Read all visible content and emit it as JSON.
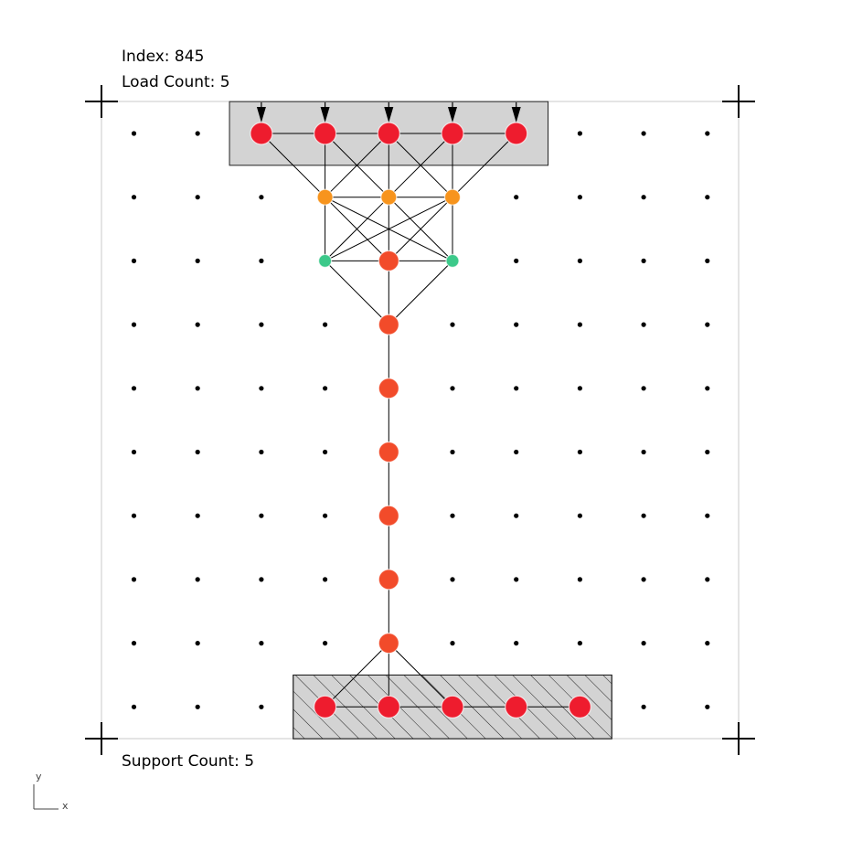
{
  "header": {
    "index_label": "Index: 845",
    "load_label": "Load Count: 5"
  },
  "footer": {
    "support_label": "Support Count: 5"
  },
  "axis": {
    "x_label": "x",
    "y_label": "y"
  },
  "colors": {
    "frame": "#c8c8c8",
    "grid_dot": "#000000",
    "member": "#000000",
    "load_zone": "#d3d3d3",
    "support_zone": "#d3d3d3",
    "node_red": "#ee1c2e",
    "node_orange_red": "#f24b2a",
    "node_orange": "#f7941d",
    "node_green": "#3cc98a"
  },
  "grid": {
    "cols": 10,
    "rows": 10
  },
  "load_zone": {
    "col_start": 1.5,
    "col_end": 6.5,
    "row_start": 0,
    "row_end": 0
  },
  "support_zone": {
    "col_start": 2.5,
    "col_end": 7.5,
    "row_start": 9,
    "row_end": 9
  },
  "loads": [
    [
      2,
      0
    ],
    [
      3,
      0
    ],
    [
      4,
      0
    ],
    [
      5,
      0
    ],
    [
      6,
      0
    ]
  ],
  "nodes": [
    {
      "c": 2,
      "r": 0,
      "type": "node_red",
      "size": "large"
    },
    {
      "c": 3,
      "r": 0,
      "type": "node_red",
      "size": "large"
    },
    {
      "c": 4,
      "r": 0,
      "type": "node_red",
      "size": "large"
    },
    {
      "c": 5,
      "r": 0,
      "type": "node_red",
      "size": "large"
    },
    {
      "c": 6,
      "r": 0,
      "type": "node_red",
      "size": "large"
    },
    {
      "c": 3,
      "r": 1,
      "type": "node_orange",
      "size": "medium"
    },
    {
      "c": 4,
      "r": 1,
      "type": "node_orange",
      "size": "medium"
    },
    {
      "c": 5,
      "r": 1,
      "type": "node_orange",
      "size": "medium"
    },
    {
      "c": 3,
      "r": 2,
      "type": "node_green",
      "size": "small"
    },
    {
      "c": 4,
      "r": 2,
      "type": "node_orange_red",
      "size": "mediumlarge"
    },
    {
      "c": 5,
      "r": 2,
      "type": "node_green",
      "size": "small"
    },
    {
      "c": 4,
      "r": 3,
      "type": "node_orange_red",
      "size": "mediumlarge"
    },
    {
      "c": 4,
      "r": 4,
      "type": "node_orange_red",
      "size": "mediumlarge"
    },
    {
      "c": 4,
      "r": 5,
      "type": "node_orange_red",
      "size": "mediumlarge"
    },
    {
      "c": 4,
      "r": 6,
      "type": "node_orange_red",
      "size": "mediumlarge"
    },
    {
      "c": 4,
      "r": 7,
      "type": "node_orange_red",
      "size": "mediumlarge"
    },
    {
      "c": 4,
      "r": 8,
      "type": "node_orange_red",
      "size": "mediumlarge"
    },
    {
      "c": 3,
      "r": 9,
      "type": "node_red",
      "size": "large"
    },
    {
      "c": 4,
      "r": 9,
      "type": "node_red",
      "size": "large"
    },
    {
      "c": 5,
      "r": 9,
      "type": "node_red",
      "size": "large"
    },
    {
      "c": 6,
      "r": 9,
      "type": "node_red",
      "size": "large"
    },
    {
      "c": 7,
      "r": 9,
      "type": "node_red",
      "size": "large"
    }
  ],
  "members": [
    [
      [
        2,
        0
      ],
      [
        3,
        0
      ]
    ],
    [
      [
        3,
        0
      ],
      [
        4,
        0
      ]
    ],
    [
      [
        4,
        0
      ],
      [
        5,
        0
      ]
    ],
    [
      [
        5,
        0
      ],
      [
        6,
        0
      ]
    ],
    [
      [
        2,
        0
      ],
      [
        3,
        1
      ]
    ],
    [
      [
        3,
        0
      ],
      [
        3,
        1
      ]
    ],
    [
      [
        3,
        0
      ],
      [
        4,
        1
      ]
    ],
    [
      [
        4,
        0
      ],
      [
        3,
        1
      ]
    ],
    [
      [
        4,
        0
      ],
      [
        4,
        1
      ]
    ],
    [
      [
        4,
        0
      ],
      [
        5,
        1
      ]
    ],
    [
      [
        5,
        0
      ],
      [
        4,
        1
      ]
    ],
    [
      [
        5,
        0
      ],
      [
        5,
        1
      ]
    ],
    [
      [
        6,
        0
      ],
      [
        5,
        1
      ]
    ],
    [
      [
        3,
        1
      ],
      [
        4,
        1
      ]
    ],
    [
      [
        4,
        1
      ],
      [
        5,
        1
      ]
    ],
    [
      [
        3,
        1
      ],
      [
        3,
        2
      ]
    ],
    [
      [
        3,
        1
      ],
      [
        4,
        2
      ]
    ],
    [
      [
        3,
        1
      ],
      [
        5,
        2
      ]
    ],
    [
      [
        4,
        1
      ],
      [
        3,
        2
      ]
    ],
    [
      [
        4,
        1
      ],
      [
        4,
        2
      ]
    ],
    [
      [
        4,
        1
      ],
      [
        5,
        2
      ]
    ],
    [
      [
        5,
        1
      ],
      [
        3,
        2
      ]
    ],
    [
      [
        5,
        1
      ],
      [
        4,
        2
      ]
    ],
    [
      [
        5,
        1
      ],
      [
        5,
        2
      ]
    ],
    [
      [
        3,
        2
      ],
      [
        4,
        2
      ]
    ],
    [
      [
        4,
        2
      ],
      [
        5,
        2
      ]
    ],
    [
      [
        3,
        2
      ],
      [
        4,
        3
      ]
    ],
    [
      [
        4,
        2
      ],
      [
        4,
        3
      ]
    ],
    [
      [
        5,
        2
      ],
      [
        4,
        3
      ]
    ],
    [
      [
        4,
        3
      ],
      [
        4,
        4
      ]
    ],
    [
      [
        4,
        4
      ],
      [
        4,
        5
      ]
    ],
    [
      [
        4,
        5
      ],
      [
        4,
        6
      ]
    ],
    [
      [
        4,
        6
      ],
      [
        4,
        7
      ]
    ],
    [
      [
        4,
        7
      ],
      [
        4,
        8
      ]
    ],
    [
      [
        4,
        8
      ],
      [
        3,
        9
      ]
    ],
    [
      [
        4,
        8
      ],
      [
        4,
        9
      ]
    ],
    [
      [
        4,
        8
      ],
      [
        5,
        9
      ]
    ],
    [
      [
        3,
        9
      ],
      [
        4,
        9
      ]
    ],
    [
      [
        4,
        9
      ],
      [
        5,
        9
      ]
    ],
    [
      [
        5,
        9
      ],
      [
        6,
        9
      ]
    ],
    [
      [
        6,
        9
      ],
      [
        7,
        9
      ]
    ]
  ]
}
